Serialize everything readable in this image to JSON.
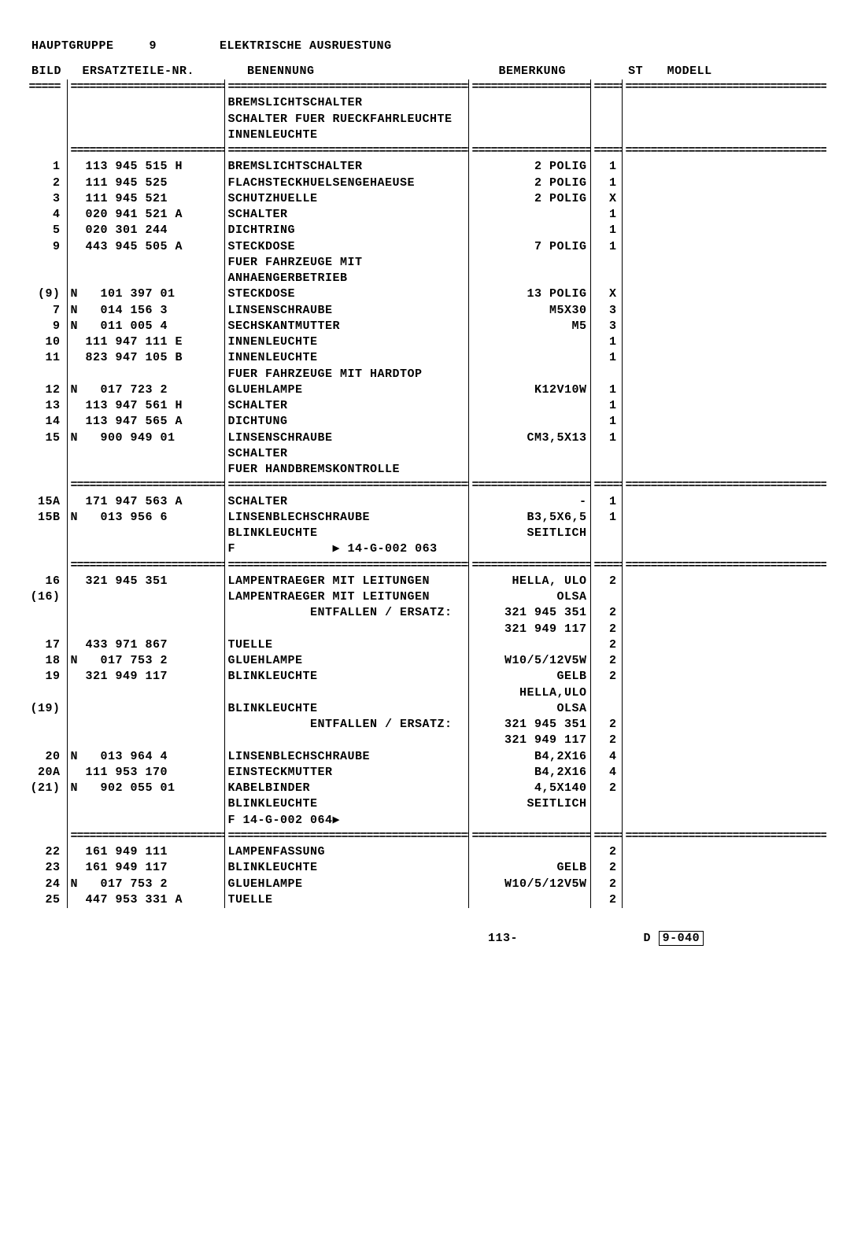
{
  "header": {
    "group_label": "HAUPTGRUPPE",
    "group_num": "9",
    "title": "ELEKTRISCHE AUSRUESTUNG"
  },
  "columns": {
    "bild": "BILD",
    "part": "ERSATZTEILE-NR.",
    "benennung": "BENENNUNG",
    "bemerkung": "BEMERKUNG",
    "st": "ST",
    "modell": "MODELL"
  },
  "divider": "================================================================",
  "rows": [
    {
      "bild": "",
      "part": "",
      "ben": "",
      "bem": "",
      "st": "",
      "model": ""
    },
    {
      "bild": "",
      "part": "",
      "ben": "BREMSLICHTSCHALTER",
      "bem": "",
      "st": "",
      "model": ""
    },
    {
      "bild": "",
      "part": "",
      "ben": "SCHALTER FUER RUECKFAHRLEUCHTE",
      "bem": "",
      "st": "",
      "model": ""
    },
    {
      "bild": "",
      "part": "",
      "ben": "INNENLEUCHTE",
      "bem": "",
      "st": "",
      "model": ""
    },
    {
      "sep": true
    },
    {
      "bild": "1",
      "part": "  113 945 515 H",
      "ben": "BREMSLICHTSCHALTER",
      "bem": "2 POLIG",
      "st": "1",
      "model": ""
    },
    {
      "bild": "2",
      "part": "  111 945 525",
      "ben": "FLACHSTECKHUELSENGEHAEUSE",
      "bem": "2 POLIG",
      "st": "1",
      "model": ""
    },
    {
      "bild": "3",
      "part": "  111 945 521",
      "ben": "SCHUTZHUELLE",
      "bem": "2 POLIG",
      "st": "X",
      "model": ""
    },
    {
      "bild": "4",
      "part": "  020 941 521 A",
      "ben": "SCHALTER",
      "bem": "",
      "st": "1",
      "model": ""
    },
    {
      "bild": "5",
      "part": "  020 301 244",
      "ben": "DICHTRING",
      "bem": "",
      "st": "1",
      "model": ""
    },
    {
      "bild": "9",
      "part": "  443 945 505 A",
      "ben": "STECKDOSE",
      "bem": "7 POLIG",
      "st": "1",
      "model": ""
    },
    {
      "bild": "",
      "part": "",
      "ben": "FUER FAHRZEUGE MIT",
      "bem": "",
      "st": "",
      "model": ""
    },
    {
      "bild": "",
      "part": "",
      "ben": "ANHAENGERBETRIEB",
      "bem": "",
      "st": "",
      "model": ""
    },
    {
      "bild": "(9)",
      "part": "N   101 397 01",
      "ben": "STECKDOSE",
      "bem": "13 POLIG",
      "st": "X",
      "model": ""
    },
    {
      "bild": "7",
      "part": "N   014 156 3",
      "ben": "LINSENSCHRAUBE",
      "bem": "M5X30",
      "st": "3",
      "model": ""
    },
    {
      "bild": "9",
      "part": "N   011 005 4",
      "ben": "SECHSKANTMUTTER",
      "bem": "M5",
      "st": "3",
      "model": ""
    },
    {
      "bild": "10",
      "part": "  111 947 111 E",
      "ben": "INNENLEUCHTE",
      "bem": "",
      "st": "1",
      "model": ""
    },
    {
      "bild": "11",
      "part": "  823 947 105 B",
      "ben": "INNENLEUCHTE",
      "bem": "",
      "st": "1",
      "model": ""
    },
    {
      "bild": "",
      "part": "",
      "ben": "FUER FAHRZEUGE MIT HARDTOP",
      "bem": "",
      "st": "",
      "model": ""
    },
    {
      "bild": "12",
      "part": "N   017 723 2",
      "ben": "GLUEHLAMPE",
      "bem": "K12V10W",
      "st": "1",
      "model": ""
    },
    {
      "bild": "13",
      "part": "  113 947 561 H",
      "ben": "SCHALTER",
      "bem": "",
      "st": "1",
      "model": ""
    },
    {
      "bild": "14",
      "part": "  113 947 565 A",
      "ben": "DICHTUNG",
      "bem": "",
      "st": "1",
      "model": ""
    },
    {
      "bild": "15",
      "part": "N   900 949 01",
      "ben": "LINSENSCHRAUBE",
      "bem": "CM3,5X13",
      "st": "1",
      "model": ""
    },
    {
      "bild": "",
      "part": "",
      "ben": "",
      "bem": "",
      "st": "",
      "model": ""
    },
    {
      "bild": "",
      "part": "",
      "ben": "SCHALTER",
      "bem": "",
      "st": "",
      "model": ""
    },
    {
      "bild": "",
      "part": "",
      "ben": "FUER HANDBREMSKONTROLLE",
      "bem": "",
      "st": "",
      "model": ""
    },
    {
      "sep": true
    },
    {
      "bild": "15A",
      "part": "  171 947 563 A",
      "ben": "SCHALTER",
      "bem": "-",
      "st": "1",
      "model": ""
    },
    {
      "bild": "15B",
      "part": "N   013 956 6",
      "ben": "LINSENBLECHSCHRAUBE",
      "bem": "B3,5X6,5",
      "st": "1",
      "model": ""
    },
    {
      "bild": "",
      "part": "",
      "ben": "",
      "bem": "",
      "st": "",
      "model": ""
    },
    {
      "bild": "",
      "part": "",
      "ben": "BLINKLEUCHTE",
      "bem": "SEITLICH",
      "st": "",
      "model": ""
    },
    {
      "bild": "",
      "part": "",
      "ben": "F             ▶ 14-G-002 063",
      "bem": "",
      "st": "",
      "model": ""
    },
    {
      "sep": true
    },
    {
      "bild": "16",
      "part": "  321 945 351",
      "ben": "LAMPENTRAEGER MIT LEITUNGEN",
      "bem": "HELLA, ULO",
      "st": "2",
      "model": ""
    },
    {
      "bild": "(16)",
      "part": "",
      "ben": "LAMPENTRAEGER MIT LEITUNGEN",
      "bem": "OLSA",
      "st": "",
      "model": ""
    },
    {
      "bild": "",
      "part": "",
      "ben": "           ENTFALLEN / ERSATZ:",
      "bem": "321 945 351",
      "st": "2",
      "model": ""
    },
    {
      "bild": "",
      "part": "",
      "ben": "",
      "bem": "321 949 117",
      "st": "2",
      "model": ""
    },
    {
      "bild": "17",
      "part": "  433 971 867",
      "ben": "TUELLE",
      "bem": "",
      "st": "2",
      "model": ""
    },
    {
      "bild": "18",
      "part": "N   017 753 2",
      "ben": "GLUEHLAMPE",
      "bem": "W10/5/12V5W",
      "st": "2",
      "model": ""
    },
    {
      "bild": "19",
      "part": "  321 949 117",
      "ben": "BLINKLEUCHTE",
      "bem": "GELB",
      "st": "2",
      "model": ""
    },
    {
      "bild": "",
      "part": "",
      "ben": "",
      "bem": "HELLA,ULO",
      "st": "",
      "model": ""
    },
    {
      "bild": "(19)",
      "part": "",
      "ben": "BLINKLEUCHTE",
      "bem": "OLSA",
      "st": "",
      "model": ""
    },
    {
      "bild": "",
      "part": "",
      "ben": "           ENTFALLEN / ERSATZ:",
      "bem": "321 945 351",
      "st": "2",
      "model": ""
    },
    {
      "bild": "",
      "part": "",
      "ben": "",
      "bem": "321 949 117",
      "st": "2",
      "model": ""
    },
    {
      "bild": "20",
      "part": "N   013 964 4",
      "ben": "LINSENBLECHSCHRAUBE",
      "bem": "B4,2X16",
      "st": "4",
      "model": ""
    },
    {
      "bild": "20A",
      "part": "  111 953 170",
      "ben": "EINSTECKMUTTER",
      "bem": "B4,2X16",
      "st": "4",
      "model": ""
    },
    {
      "bild": "(21)",
      "part": "N   902 055 01",
      "ben": "KABELBINDER",
      "bem": "4,5X140",
      "st": "2",
      "model": ""
    },
    {
      "bild": "",
      "part": "",
      "ben": "",
      "bem": "",
      "st": "",
      "model": ""
    },
    {
      "bild": "",
      "part": "",
      "ben": "BLINKLEUCHTE",
      "bem": "SEITLICH",
      "st": "",
      "model": ""
    },
    {
      "bild": "",
      "part": "",
      "ben": "F 14-G-002 064▶",
      "bem": "",
      "st": "",
      "model": ""
    },
    {
      "sep": true
    },
    {
      "bild": "22",
      "part": "  161 949 111",
      "ben": "LAMPENFASSUNG",
      "bem": "",
      "st": "2",
      "model": ""
    },
    {
      "bild": "23",
      "part": "  161 949 117",
      "ben": "BLINKLEUCHTE",
      "bem": "GELB",
      "st": "2",
      "model": ""
    },
    {
      "bild": "24",
      "part": "N   017 753 2",
      "ben": "GLUEHLAMPE",
      "bem": "W10/5/12V5W",
      "st": "2",
      "model": ""
    },
    {
      "bild": "25",
      "part": "  447 953 331 A",
      "ben": "TUELLE",
      "bem": "",
      "st": "2",
      "model": ""
    },
    {
      "bild": "",
      "part": "",
      "ben": "",
      "bem": "",
      "st": "",
      "model": ""
    },
    {
      "bild": "",
      "part": "",
      "ben": "",
      "bem": "",
      "st": "",
      "model": ""
    },
    {
      "bild": "",
      "part": "",
      "ben": "",
      "bem": "",
      "st": "",
      "model": ""
    }
  ],
  "footer": {
    "page": "113-",
    "d_label": "D",
    "code": "9-040"
  }
}
